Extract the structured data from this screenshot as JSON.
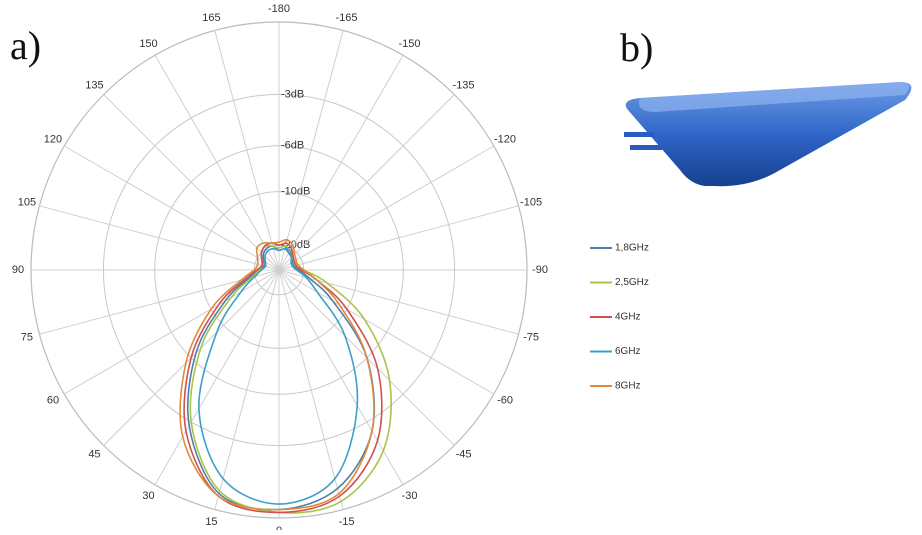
{
  "chart_data": {
    "type": "polar",
    "panel_labels": [
      "a)",
      "b)"
    ],
    "theta": [
      -180,
      -165,
      -150,
      -135,
      -120,
      -105,
      -90,
      -75,
      -60,
      -45,
      -30,
      -15,
      0,
      15,
      30,
      45,
      60,
      75,
      90,
      105,
      120,
      135,
      150,
      165
    ],
    "thetaticks": [
      -180,
      -165,
      -150,
      -135,
      -120,
      -105,
      -90,
      -75,
      -60,
      -45,
      -30,
      -15,
      0,
      15,
      30,
      45,
      60,
      75,
      90,
      105,
      120,
      135,
      150,
      165
    ],
    "rlim": [
      -40,
      0
    ],
    "rscale": "amplitude",
    "rticks": [
      {
        "value": -3,
        "label": "-3dB"
      },
      {
        "value": -6,
        "label": "-6dB"
      },
      {
        "value": -10,
        "label": "-10dB"
      },
      {
        "value": -20,
        "label": "-20dB"
      }
    ],
    "grid": true,
    "legend": "right",
    "series": [
      {
        "name": "1,8GHz",
        "color": "#4f7fa8",
        "values": [
          -22,
          -21,
          -22,
          -23,
          -24,
          -24,
          -22,
          -18,
          -12,
          -6,
          -2.5,
          -0.8,
          -0.3,
          -0.6,
          -2.8,
          -6.5,
          -12,
          -18,
          -22,
          -24,
          -23,
          -21,
          -20,
          -20
        ]
      },
      {
        "name": "2,5GHz",
        "color": "#a8c44a",
        "values": [
          -21,
          -20,
          -21,
          -22,
          -23,
          -22,
          -20,
          -14,
          -8,
          -4,
          -1.5,
          -0.3,
          -0.2,
          -0.7,
          -3,
          -7,
          -13,
          -19,
          -22,
          -23,
          -22,
          -20,
          -19,
          -20
        ]
      },
      {
        "name": "4GHz",
        "color": "#d05050",
        "values": [
          -20,
          -19,
          -20,
          -22,
          -23,
          -23,
          -21,
          -16,
          -10,
          -5,
          -2,
          -0.5,
          -0.2,
          -0.5,
          -2.5,
          -6,
          -11,
          -17,
          -21,
          -23,
          -22,
          -20,
          -19,
          -19
        ]
      },
      {
        "name": "6GHz",
        "color": "#3aa0c8",
        "values": [
          -22,
          -21,
          -21,
          -23,
          -25,
          -25,
          -23,
          -19,
          -15,
          -8.5,
          -4,
          -1.2,
          -0.5,
          -1.2,
          -3.8,
          -9,
          -15,
          -20,
          -23,
          -25,
          -24,
          -22,
          -21,
          -21
        ]
      },
      {
        "name": "8GHz",
        "color": "#e08a3a",
        "values": [
          -19,
          -18,
          -19,
          -21,
          -22,
          -22,
          -20,
          -16,
          -11,
          -6,
          -2.5,
          -0.6,
          -0.3,
          -0.5,
          -2.2,
          -5.5,
          -10,
          -16,
          -20,
          -21,
          -20,
          -18,
          -18,
          -19
        ]
      }
    ]
  }
}
